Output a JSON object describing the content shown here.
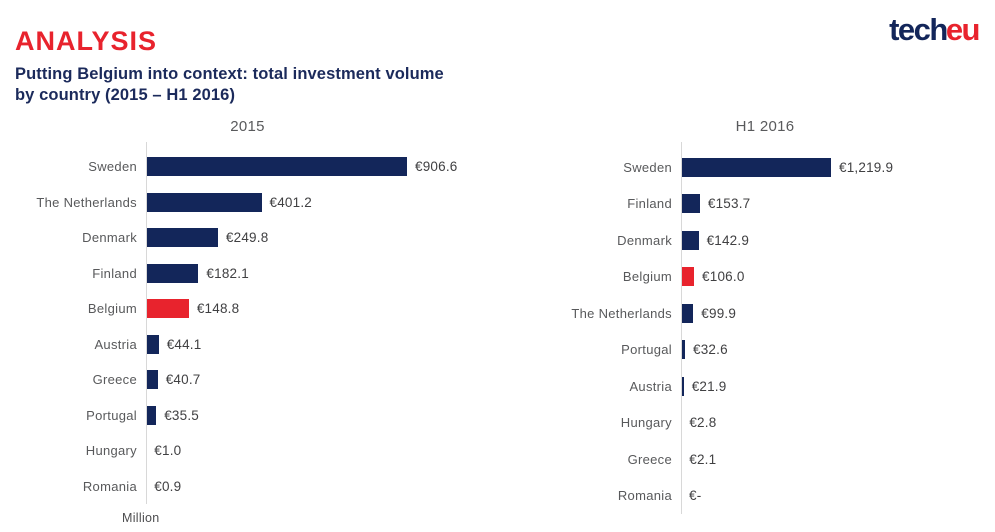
{
  "header": {
    "kicker": "ANALYSIS",
    "title_line1": "Putting Belgium into context: total investment volume",
    "title_line2": "by country (2015 – H1 2016)",
    "logo_part1": "tech",
    "logo_part2": "eu"
  },
  "colors": {
    "bar_navy": "#13265a",
    "bar_red": "#e8232d",
    "kicker_red": "#e8232d",
    "title_navy": "#1b2a5b",
    "axis_gray": "#d8d8d8",
    "label_gray": "#58595b",
    "value_gray": "#404042"
  },
  "footer_note": "Million",
  "chart_data": [
    {
      "type": "bar",
      "orientation": "horizontal",
      "title": "2015",
      "unit": "EUR million",
      "legend_position": "none",
      "grid": false,
      "xlim": [
        0,
        950
      ],
      "highlight_category": "Belgium",
      "categories": [
        "Sweden",
        "The Netherlands",
        "Denmark",
        "Finland",
        "Belgium",
        "Austria",
        "Greece",
        "Portugal",
        "Hungary",
        "Romania"
      ],
      "values": [
        906.6,
        401.2,
        249.8,
        182.1,
        148.8,
        44.1,
        40.7,
        35.5,
        1.0,
        0.9
      ],
      "value_labels": [
        "€906.6",
        "€401.2",
        "€249.8",
        "€182.1",
        "€148.8",
        "€44.1",
        "€40.7",
        "€35.5",
        "€1.0",
        "€0.9"
      ]
    },
    {
      "type": "bar",
      "orientation": "horizontal",
      "title": "H1 2016",
      "unit": "EUR million",
      "legend_position": "none",
      "grid": false,
      "xlim": [
        0,
        1280
      ],
      "highlight_category": "Belgium",
      "categories": [
        "Sweden",
        "Finland",
        "Denmark",
        "Belgium",
        "The Netherlands",
        "Portugal",
        "Austria",
        "Hungary",
        "Greece",
        "Romania"
      ],
      "values": [
        1219.9,
        153.7,
        142.9,
        106.0,
        99.9,
        32.6,
        21.9,
        2.8,
        2.1,
        0
      ],
      "value_labels": [
        "€1,219.9",
        "€153.7",
        "€142.9",
        "€106.0",
        "€99.9",
        "€32.6",
        "€21.9",
        "€2.8",
        "€2.1",
        "€-"
      ]
    }
  ]
}
